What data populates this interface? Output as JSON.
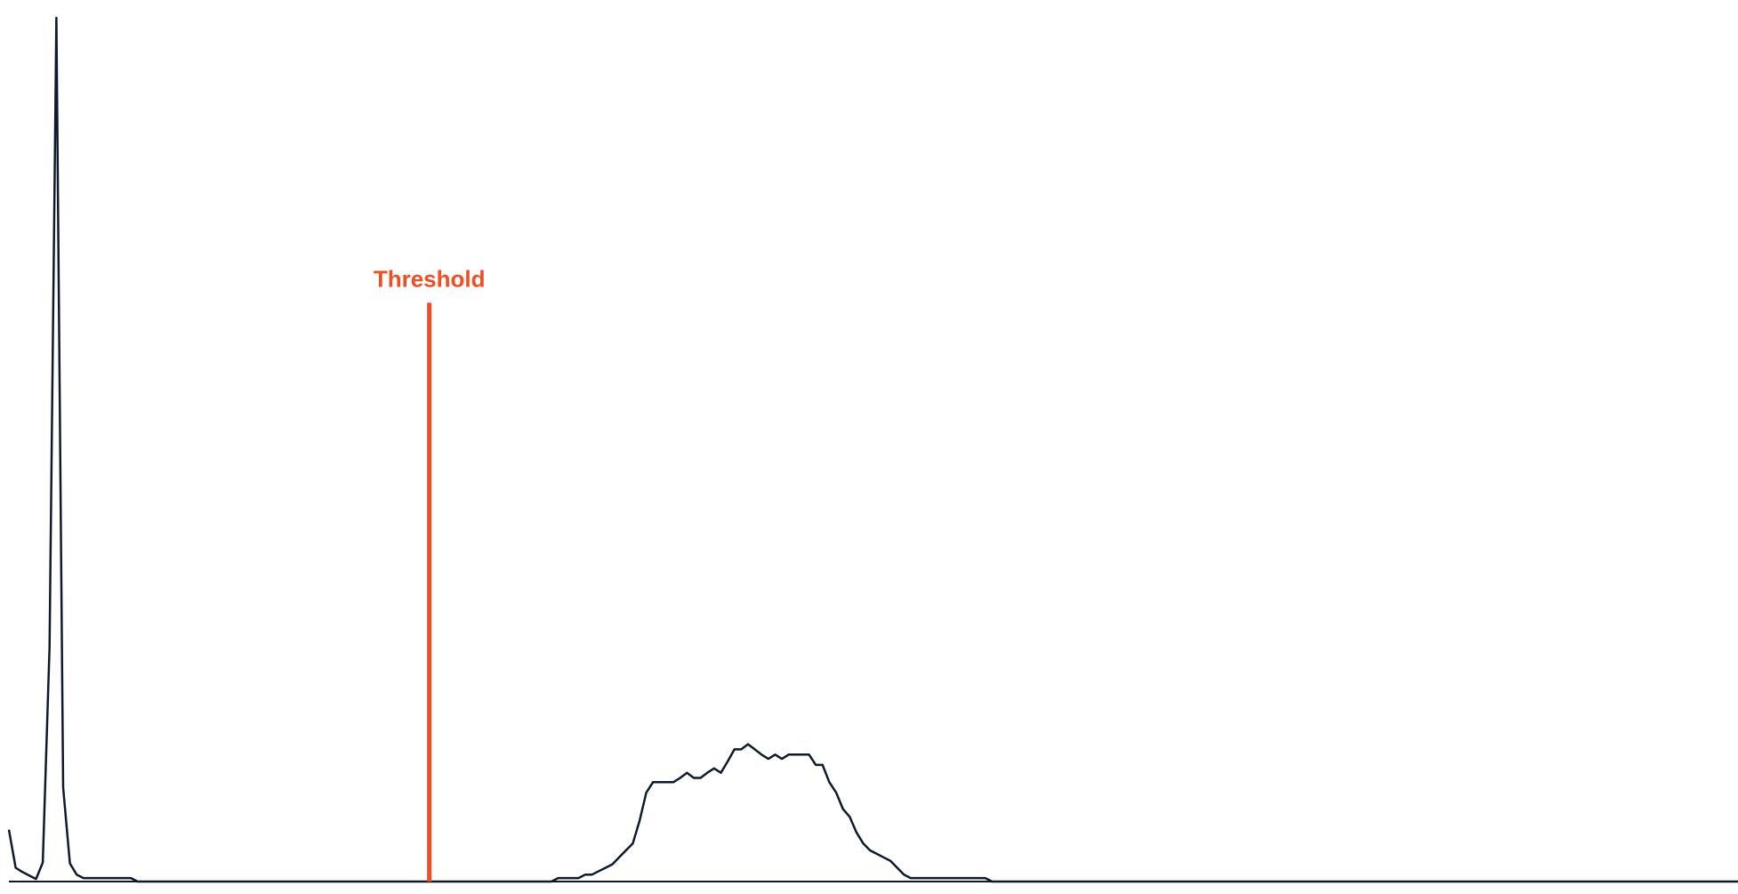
{
  "chart_data": {
    "type": "line",
    "title": "",
    "xlabel": "",
    "ylabel": "",
    "xlim": [
      0,
      255
    ],
    "ylim": [
      0,
      100
    ],
    "grid": false,
    "legend": "none",
    "series": [
      {
        "color": "#0f1b2d",
        "x": [
          0,
          1,
          2,
          3,
          4,
          5,
          6,
          7,
          8,
          9,
          10,
          11,
          12,
          13,
          14,
          15,
          16,
          17,
          18,
          19,
          80,
          81,
          82,
          84,
          85,
          86,
          87,
          88,
          89,
          90,
          91,
          92,
          93,
          94,
          95,
          96,
          97,
          98,
          99,
          100,
          101,
          102,
          103,
          104,
          105,
          106,
          107,
          108,
          109,
          110,
          111,
          112,
          113,
          114,
          115,
          116,
          117,
          118,
          119,
          120,
          121,
          122,
          123,
          124,
          125,
          126,
          127,
          128,
          129,
          130,
          131,
          132,
          133,
          134,
          135,
          136,
          137,
          138,
          139,
          140,
          141,
          142,
          143,
          144,
          145,
          255
        ],
        "values": [
          6.0,
          1.6,
          1.1,
          0.7,
          0.3,
          2.2,
          27.2,
          100.0,
          10.9,
          2.1,
          0.8,
          0.4,
          0.4,
          0.4,
          0.4,
          0.4,
          0.4,
          0.4,
          0.4,
          0.0,
          0.0,
          0.4,
          0.4,
          0.4,
          0.8,
          0.8,
          1.2,
          1.6,
          2.0,
          2.8,
          3.6,
          4.4,
          7.0,
          10.3,
          11.5,
          11.5,
          11.5,
          11.5,
          12.0,
          12.6,
          12.0,
          12.0,
          12.6,
          13.1,
          12.6,
          13.9,
          15.3,
          15.3,
          15.9,
          15.3,
          14.7,
          14.2,
          14.7,
          14.2,
          14.7,
          14.7,
          14.7,
          14.7,
          13.5,
          13.5,
          11.5,
          10.3,
          8.4,
          7.5,
          5.7,
          4.4,
          3.6,
          3.2,
          2.8,
          2.4,
          1.6,
          0.8,
          0.4,
          0.4,
          0.4,
          0.4,
          0.4,
          0.4,
          0.4,
          0.4,
          0.4,
          0.4,
          0.4,
          0.4,
          0.0,
          0.0
        ]
      }
    ],
    "annotations": [
      {
        "type": "vline",
        "x": 62,
        "y_top": 67,
        "label": "Threshold",
        "color": "#f04e23"
      }
    ]
  }
}
